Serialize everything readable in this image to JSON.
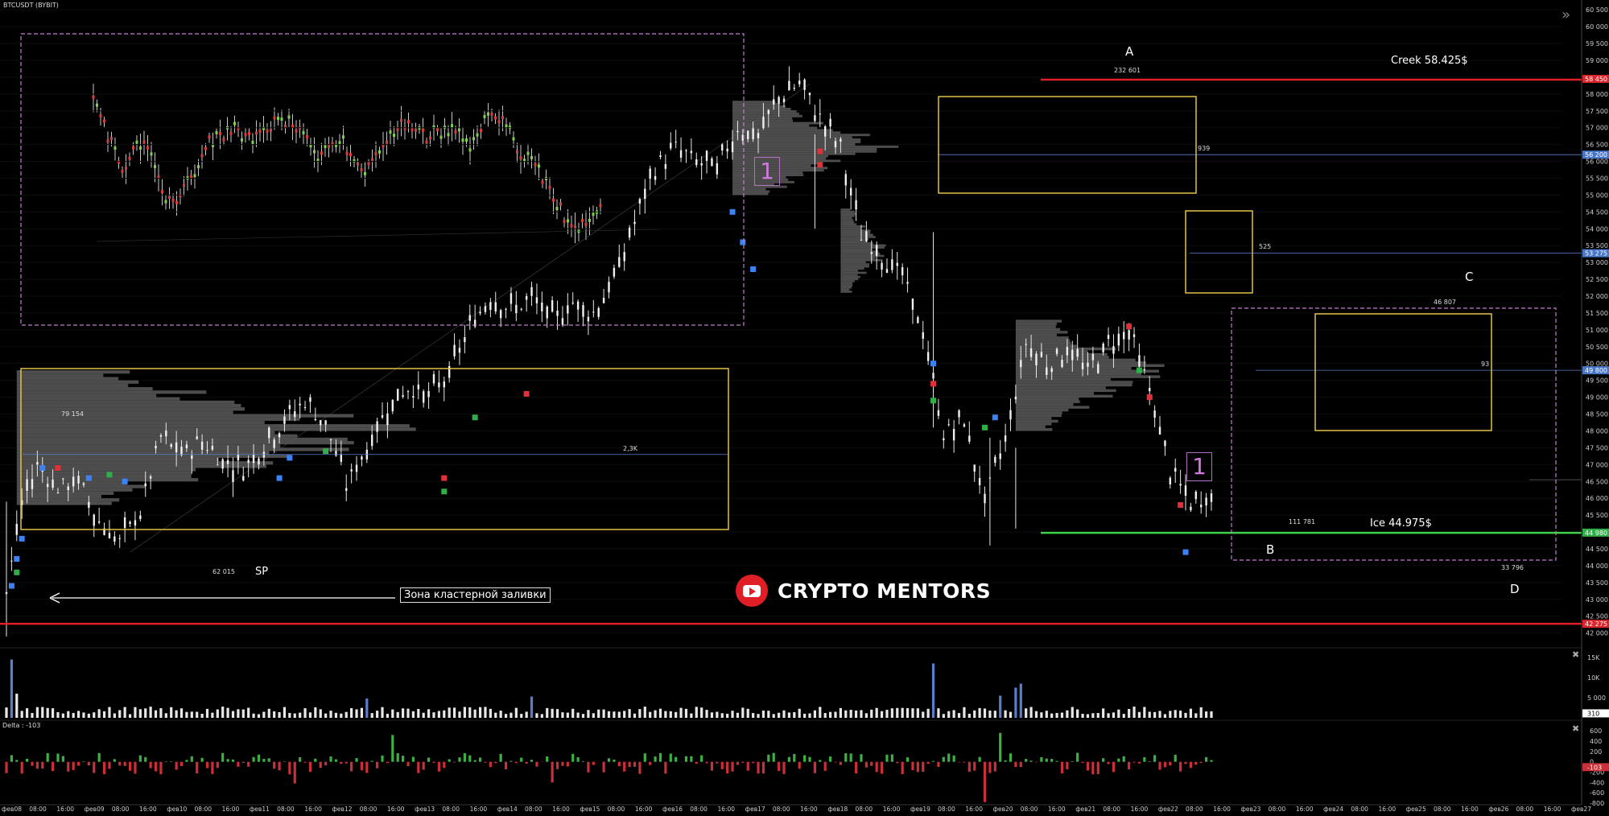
{
  "ticker": "BTCUSDT (BYBIT)",
  "brand": {
    "name": "CRYPTO MENTORS"
  },
  "delta_label": "Delta : -103",
  "price_axis": {
    "ticks": [
      "60 500",
      "60 000",
      "59 500",
      "59 000",
      "58 500",
      "58 000",
      "57 500",
      "57 000",
      "56 500",
      "56 000",
      "55 500",
      "55 000",
      "54 500",
      "54 000",
      "53 500",
      "53 000",
      "52 500",
      "52 000",
      "51 500",
      "51 000",
      "50 500",
      "50 000",
      "49 500",
      "49 000",
      "48 500",
      "48 000",
      "47 500",
      "47 000",
      "46 500",
      "46 000",
      "45 500",
      "45 000",
      "44 500",
      "44 000",
      "43 500",
      "43 000",
      "42 500",
      "42 000"
    ],
    "badges": [
      {
        "label": "58 450",
        "price": 58450,
        "color": "#d9262d"
      },
      {
        "label": "56 200",
        "price": 56200,
        "color": "#4a78c8"
      },
      {
        "label": "53 275",
        "price": 53275,
        "color": "#4a78c8"
      },
      {
        "label": "49 800",
        "price": 49800,
        "color": "#4a78c8"
      },
      {
        "label": "44 980",
        "price": 44980,
        "color": "#2fae4a"
      },
      {
        "label": "42 275",
        "price": 42275,
        "color": "#d9262d"
      }
    ]
  },
  "volume_axis": {
    "ticks": [
      "15K",
      "10K",
      "5 000"
    ],
    "badge": "310"
  },
  "delta_axis": {
    "ticks": [
      "600",
      "400",
      "200",
      "0",
      "-200",
      "-400",
      "-600",
      "-800"
    ],
    "badge": "-103"
  },
  "time_axis": [
    "фев08",
    "08:00",
    "16:00",
    "фев09",
    "08:00",
    "16:00",
    "фев10",
    "08:00",
    "16:00",
    "фев11",
    "08:00",
    "16:00",
    "фев12",
    "08:00",
    "16:00",
    "фев13",
    "08:00",
    "16:00",
    "фев14",
    "08:00",
    "16:00",
    "фев15",
    "08:00",
    "16:00",
    "фев16",
    "08:00",
    "16:00",
    "фев17",
    "08:00",
    "16:00",
    "фев18",
    "08:00",
    "16:00",
    "фев19",
    "08:00",
    "16:00",
    "фев20",
    "08:00",
    "16:00",
    "фев21",
    "08:00",
    "16:00",
    "фев22",
    "08:00",
    "16:00",
    "фев23",
    "08:00",
    "16:00",
    "фев24",
    "08:00",
    "16:00",
    "фев25",
    "08:00",
    "16:00",
    "фев26",
    "08:00",
    "16:00",
    "фев27"
  ],
  "annotations": {
    "creek": "Creek 58.425$",
    "ice": "Ice 44.975$",
    "point_a": "A",
    "point_b": "B",
    "point_c": "C",
    "point_d": "D",
    "sp": "SP",
    "box_number_1": "1",
    "box_number_2": "1",
    "cluster_zone": "Зона кластерной заливки",
    "vol_232601": "232 601",
    "vol_79154": "79 154",
    "vol_62015": "62 015",
    "vol_111781": "111 781",
    "vol_46807": "46 807",
    "vol_33796": "33 796",
    "vol_2_3k": "2,3K",
    "vol_939": "939",
    "vol_525": "525",
    "vol_93": "93"
  },
  "chart_data": {
    "type": "candlestick",
    "symbol": "BTCUSDT",
    "ylim": [
      41800,
      60600
    ],
    "levels": {
      "creek": 58425,
      "ice": 44975,
      "bottom_red": 42275
    },
    "key_points": [
      {
        "label": "A",
        "price": 58500
      },
      {
        "label": "B",
        "price": 44600
      },
      {
        "label": "C",
        "price": 52000
      },
      {
        "label": "D",
        "price": 44000
      }
    ],
    "close_path": [
      [
        0,
        43200
      ],
      [
        3,
        45800
      ],
      [
        6,
        47000
      ],
      [
        10,
        46300
      ],
      [
        14,
        46500
      ],
      [
        18,
        45300
      ],
      [
        22,
        44700
      ],
      [
        26,
        45600
      ],
      [
        30,
        47800
      ],
      [
        34,
        47300
      ],
      [
        38,
        47700
      ],
      [
        42,
        47100
      ],
      [
        46,
        46900
      ],
      [
        50,
        47600
      ],
      [
        54,
        48300
      ],
      [
        58,
        48900
      ],
      [
        62,
        48200
      ],
      [
        66,
        46400
      ],
      [
        70,
        47500
      ],
      [
        74,
        48700
      ],
      [
        78,
        49300
      ],
      [
        82,
        49000
      ],
      [
        86,
        49700
      ],
      [
        90,
        51100
      ],
      [
        94,
        52000
      ],
      [
        98,
        51600
      ],
      [
        102,
        51900
      ],
      [
        106,
        51300
      ],
      [
        110,
        51800
      ],
      [
        114,
        51500
      ],
      [
        118,
        52500
      ],
      [
        122,
        54200
      ],
      [
        126,
        55800
      ],
      [
        130,
        56400
      ],
      [
        134,
        56000
      ],
      [
        138,
        55800
      ],
      [
        142,
        57000
      ],
      [
        146,
        56700
      ],
      [
        150,
        57900
      ],
      [
        154,
        58300
      ],
      [
        158,
        57300
      ],
      [
        162,
        56400
      ],
      [
        164,
        55000
      ],
      [
        166,
        53800
      ],
      [
        170,
        53200
      ],
      [
        174,
        52600
      ],
      [
        178,
        50900
      ],
      [
        182,
        47900
      ],
      [
        186,
        48300
      ],
      [
        190,
        45900
      ],
      [
        194,
        47800
      ],
      [
        198,
        50600
      ],
      [
        202,
        50000
      ],
      [
        206,
        50400
      ],
      [
        210,
        49800
      ],
      [
        214,
        50600
      ],
      [
        218,
        51000
      ],
      [
        222,
        49200
      ],
      [
        226,
        46800
      ],
      [
        230,
        45800
      ],
      [
        234,
        46100
      ]
    ],
    "volume": {
      "ylim": [
        0,
        16000
      ]
    },
    "delta": {
      "ylim": [
        -800,
        650
      ]
    }
  }
}
